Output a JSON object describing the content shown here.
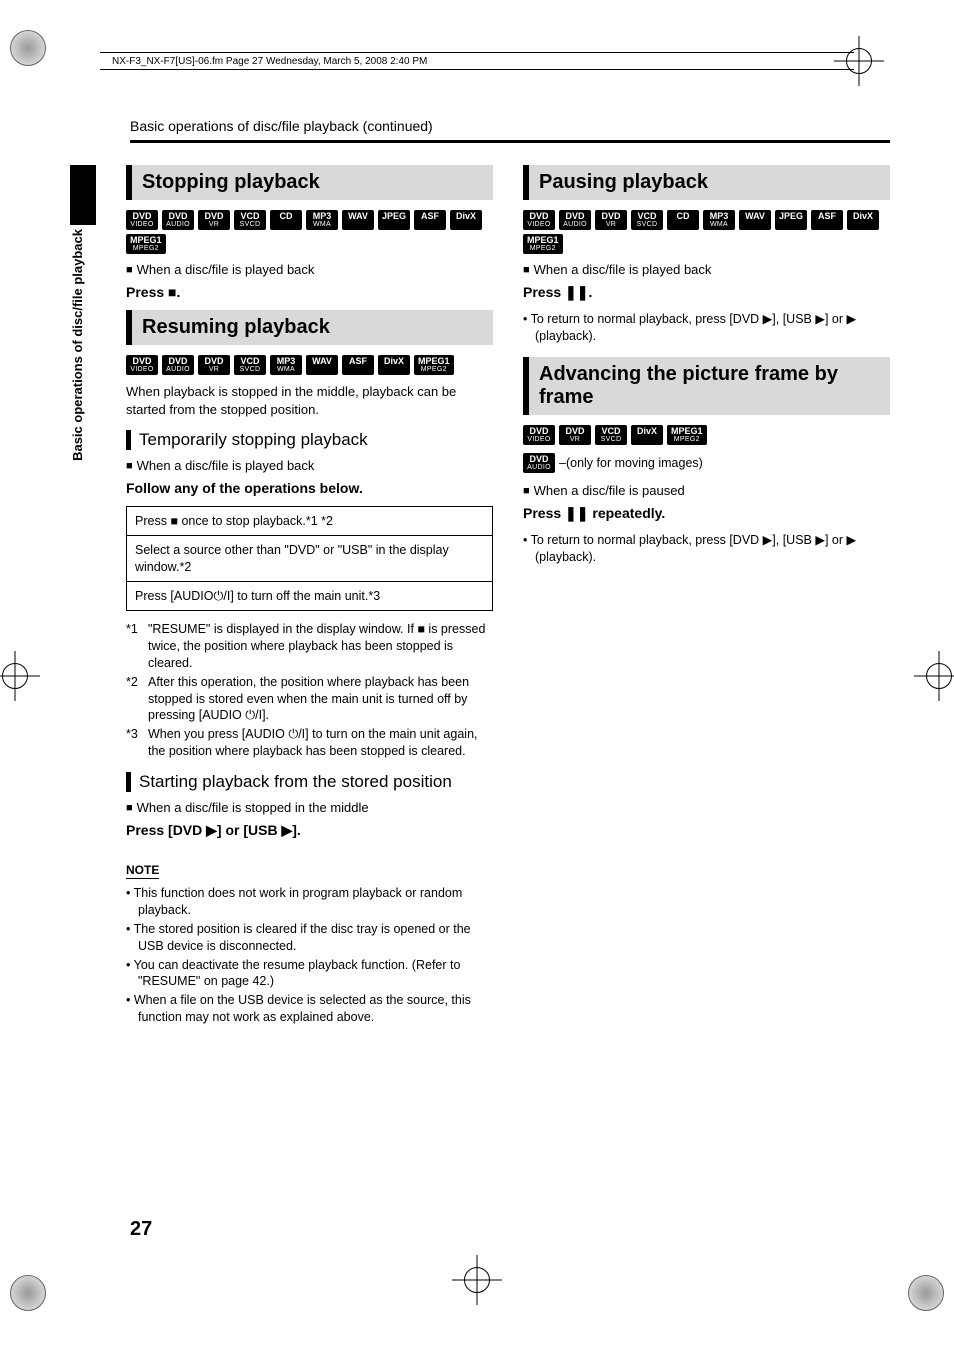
{
  "header": {
    "running": "NX-F3_NX-F7[US]-06.fm  Page 27  Wednesday, March 5, 2008  2:40 PM",
    "continued": "Basic operations of disc/file playback (continued)"
  },
  "sidebar": {
    "label": "Basic operations of disc/file playback"
  },
  "left": {
    "s1": {
      "title": "Stopping playback",
      "badges": [
        "DVD|VIDEO",
        "DVD|AUDIO",
        "DVD|VR",
        "VCD|SVCD",
        "CD",
        "MP3|WMA",
        "WAV",
        "JPEG",
        "ASF",
        "DivX",
        "MPEG1|MPEG2"
      ],
      "cond": "When a disc/file is played back",
      "instr": "Press ■."
    },
    "s2": {
      "title": "Resuming playback",
      "badges": [
        "DVD|VIDEO",
        "DVD|AUDIO",
        "DVD|VR",
        "VCD|SVCD",
        "MP3|WMA",
        "WAV",
        "ASF",
        "DivX",
        "MPEG1|MPEG2"
      ],
      "intro": "When playback is stopped in the middle, playback can be started from the stopped position.",
      "sub1": "Temporarily stopping playback",
      "cond1": "When a disc/file is played back",
      "follow": "Follow any of the operations below.",
      "ops": [
        "Press ■ once to stop playback.*1 *2",
        "Select a source other than \"DVD\" or \"USB\" in the display window.*2",
        "Press [AUDIO⏻/I] to turn off the main unit.*3"
      ],
      "fns": [
        {
          "tag": "*1",
          "text": "\"RESUME\" is displayed in the display window. If ■ is pressed twice, the position where playback has been stopped is cleared."
        },
        {
          "tag": "*2",
          "text": "After this operation, the position where playback has been stopped is stored even when the main unit is turned off by pressing [AUDIO ⏻/I]."
        },
        {
          "tag": "*3",
          "text": "When you press [AUDIO ⏻/I] to turn on the main unit again, the position where playback has been stopped is cleared."
        }
      ],
      "sub2": "Starting playback from the stored position",
      "cond2": "When a disc/file is stopped in the middle",
      "instr2": "Press [DVD ▶] or [USB ▶].",
      "notes": [
        "This function does not work in program playback or random playback.",
        "The stored position is cleared if the disc tray is opened or the USB device is disconnected.",
        "You can deactivate the resume playback function. (Refer to \"RESUME\" on page 42.)",
        "When a file on the USB device is selected as the source, this function may not work as explained above."
      ]
    }
  },
  "right": {
    "s1": {
      "title": "Pausing playback",
      "badges": [
        "DVD|VIDEO",
        "DVD|AUDIO",
        "DVD|VR",
        "VCD|SVCD",
        "CD",
        "MP3|WMA",
        "WAV",
        "JPEG",
        "ASF",
        "DivX",
        "MPEG1|MPEG2"
      ],
      "cond": "When a disc/file is played back",
      "instr": "Press ❚❚.",
      "note": "To return to normal playback, press [DVD ▶], [USB ▶] or ▶ (playback)."
    },
    "s2": {
      "title": "Advancing the picture frame by frame",
      "badges": [
        "DVD|VIDEO",
        "DVD|VR",
        "VCD|SVCD",
        "DivX",
        "MPEG1|MPEG2"
      ],
      "extra_badge": "DVD|AUDIO",
      "extra_text": "–(only for moving images)",
      "cond": "When a disc/file is paused",
      "instr": "Press ❚❚ repeatedly.",
      "note": "To return to normal playback, press [DVD ▶], [USB ▶] or ▶ (playback)."
    }
  },
  "page_number": "27",
  "note_label": "NOTE"
}
